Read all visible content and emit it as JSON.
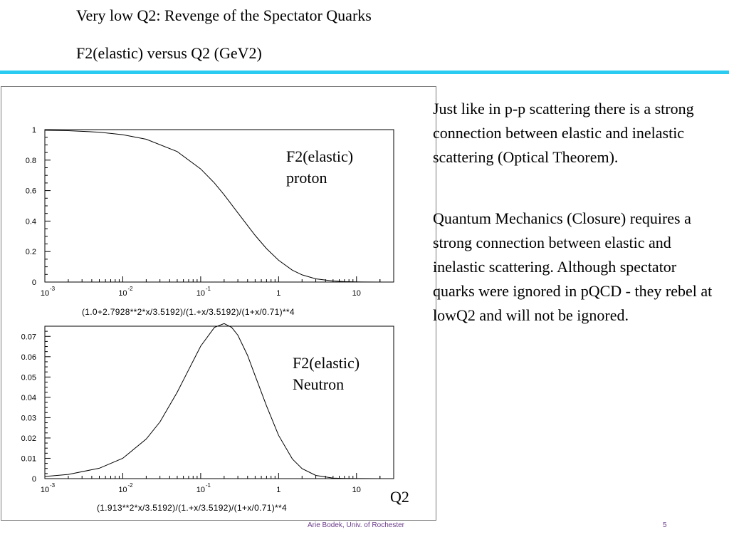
{
  "slide": {
    "title_line1": "Very low Q2: Revenge of the Spectator Quarks",
    "title_line2": "F2(elastic) versus Q2  (GeV2)",
    "paragraph1": "Just like in p-p scattering there is a strong connection between elastic and inelastic scattering (Optical Theorem).",
    "paragraph2": "Quantum Mechanics (Closure) requires a strong connection between elastic and inelastic scattering.  Although spectator quarks were ignored in pQCD - they rebel at lowQ2 and will not be ignored.",
    "footer_author": "Arie Bodek,  Univ. of Rochester",
    "footer_page": "5",
    "rule_color": "#29ccf0",
    "q2_label": "Q2"
  },
  "chart_data": [
    {
      "type": "line",
      "label_line1": "F2(elastic)",
      "label_line2": "proton",
      "formula": "(1.0+2.7928**2*x/3.5192)/(1.+x/3.5192)/(1+x/0.71)**4",
      "x_scale": "log",
      "xlim": [
        0.001,
        30
      ],
      "ylim": [
        0,
        1
      ],
      "x_ticks": [
        {
          "value": 0.001,
          "base": "10",
          "exp": "-3"
        },
        {
          "value": 0.01,
          "base": "10",
          "exp": "-2"
        },
        {
          "value": 0.1,
          "base": "10",
          "exp": "-1"
        },
        {
          "value": 1,
          "base": "1",
          "exp": ""
        },
        {
          "value": 10,
          "base": "10",
          "exp": ""
        }
      ],
      "y_ticks": [
        {
          "value": 0,
          "label": "0"
        },
        {
          "value": 0.2,
          "label": "0.2"
        },
        {
          "value": 0.4,
          "label": "0.4"
        },
        {
          "value": 0.6,
          "label": "0.6"
        },
        {
          "value": 0.8,
          "label": "0.8"
        },
        {
          "value": 1,
          "label": "1"
        }
      ],
      "series": [
        {
          "x": [
            0.001,
            0.002,
            0.005,
            0.01,
            0.02,
            0.05,
            0.1,
            0.15,
            0.2,
            0.3,
            0.5,
            0.7,
            1,
            1.5,
            2,
            3,
            5,
            7,
            10,
            20,
            30
          ],
          "y": [
            0.996,
            0.993,
            0.983,
            0.967,
            0.937,
            0.856,
            0.742,
            0.65,
            0.573,
            0.454,
            0.306,
            0.219,
            0.143,
            0.078,
            0.047,
            0.021,
            0.0068,
            0.0029,
            0.0011,
            0.0001,
            3e-05
          ]
        }
      ]
    },
    {
      "type": "line",
      "label_line1": "F2(elastic)",
      "label_line2": "Neutron",
      "formula": "(1.913**2*x/3.5192)/(1.+x/3.5192)/(1+x/0.71)**4",
      "x_scale": "log",
      "xlim": [
        0.001,
        30
      ],
      "ylim": [
        0,
        0.075
      ],
      "x_ticks": [
        {
          "value": 0.001,
          "base": "10",
          "exp": "-3"
        },
        {
          "value": 0.01,
          "base": "10",
          "exp": "-2"
        },
        {
          "value": 0.1,
          "base": "10",
          "exp": "-1"
        },
        {
          "value": 1,
          "base": "1",
          "exp": ""
        },
        {
          "value": 10,
          "base": "10",
          "exp": ""
        }
      ],
      "y_ticks": [
        {
          "value": 0,
          "label": "0"
        },
        {
          "value": 0.01,
          "label": "0.01"
        },
        {
          "value": 0.02,
          "label": "0.02"
        },
        {
          "value": 0.03,
          "label": "0.03"
        },
        {
          "value": 0.04,
          "label": "0.04"
        },
        {
          "value": 0.05,
          "label": "0.05"
        },
        {
          "value": 0.06,
          "label": "0.06"
        },
        {
          "value": 0.07,
          "label": "0.07"
        }
      ],
      "series": [
        {
          "x": [
            0.001,
            0.002,
            0.005,
            0.01,
            0.02,
            0.03,
            0.05,
            0.07,
            0.1,
            0.15,
            0.2,
            0.25,
            0.3,
            0.4,
            0.5,
            0.7,
            1,
            1.5,
            2,
            3,
            5,
            7,
            10,
            20,
            30
          ],
          "y": [
            0.00104,
            0.00207,
            0.00513,
            0.01,
            0.0195,
            0.0279,
            0.0425,
            0.0535,
            0.0652,
            0.0744,
            0.0763,
            0.0744,
            0.0706,
            0.0606,
            0.0506,
            0.0358,
            0.0213,
            0.0097,
            0.0049,
            0.00157,
            0.00028,
            9e-05,
            2e-05,
            1e-06,
            1e-07
          ]
        }
      ]
    }
  ]
}
